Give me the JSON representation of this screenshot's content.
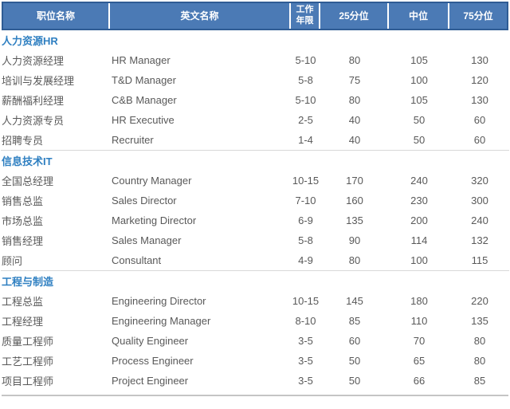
{
  "chart_data": {
    "type": "table",
    "columns": [
      "职位名称",
      "英文名称",
      "工作年限",
      "25分位",
      "中位",
      "75分位"
    ],
    "sections": [
      {
        "title": "人力资源HR",
        "rows": [
          {
            "cn": "人力资源经理",
            "en": "HR Manager",
            "years": "5-10",
            "p25": "80",
            "median": "105",
            "p75": "130"
          },
          {
            "cn": "培训与发展经理",
            "en": "T&D Manager",
            "years": "5-8",
            "p25": "75",
            "median": "100",
            "p75": "120"
          },
          {
            "cn": "薪酬福利经理",
            "en": "C&B Manager",
            "years": "5-10",
            "p25": "80",
            "median": "105",
            "p75": "130"
          },
          {
            "cn": "人力资源专员",
            "en": "HR Executive",
            "years": "2-5",
            "p25": "40",
            "median": "50",
            "p75": "60"
          },
          {
            "cn": "招聘专员",
            "en": "Recruiter",
            "years": "1-4",
            "p25": "40",
            "median": "50",
            "p75": "60"
          }
        ]
      },
      {
        "title": "信息技术IT",
        "rows": [
          {
            "cn": "全国总经理",
            "en": "Country Manager",
            "years": "10-15",
            "p25": "170",
            "median": "240",
            "p75": "320"
          },
          {
            "cn": "销售总监",
            "en": "Sales Director",
            "years": "7-10",
            "p25": "160",
            "median": "230",
            "p75": "300"
          },
          {
            "cn": "市场总监",
            "en": "Marketing Director",
            "years": "6-9",
            "p25": "135",
            "median": "200",
            "p75": "240"
          },
          {
            "cn": "销售经理",
            "en": "Sales Manager",
            "years": "5-8",
            "p25": "90",
            "median": "114",
            "p75": "132"
          },
          {
            "cn": "顾问",
            "en": "Consultant",
            "years": "4-9",
            "p25": "80",
            "median": "100",
            "p75": "115"
          }
        ]
      },
      {
        "title": "工程与制造",
        "rows": [
          {
            "cn": "工程总监",
            "en": "Engineering Director",
            "years": "10-15",
            "p25": "145",
            "median": "180",
            "p75": "220"
          },
          {
            "cn": "工程经理",
            "en": "Engineering Manager",
            "years": "8-10",
            "p25": "85",
            "median": "110",
            "p75": "135"
          },
          {
            "cn": "质量工程师",
            "en": "Quality Engineer",
            "years": "3-5",
            "p25": "60",
            "median": "70",
            "p75": "80"
          },
          {
            "cn": "工艺工程师",
            "en": "Process Engineer",
            "years": "3-5",
            "p25": "50",
            "median": "65",
            "p75": "80"
          },
          {
            "cn": "项目工程师",
            "en": "Project Engineer",
            "years": "3-5",
            "p25": "50",
            "median": "66",
            "p75": "85"
          }
        ]
      }
    ],
    "layout": {
      "legend": "none",
      "grid": "off"
    }
  },
  "colors": {
    "header_bg": "#4b7ab5",
    "header_border": "#2f5c94",
    "header_text": "#ffffff",
    "section_title_text": "#2e7fc1",
    "body_text": "#595959",
    "divider": "#d8d8d8"
  }
}
